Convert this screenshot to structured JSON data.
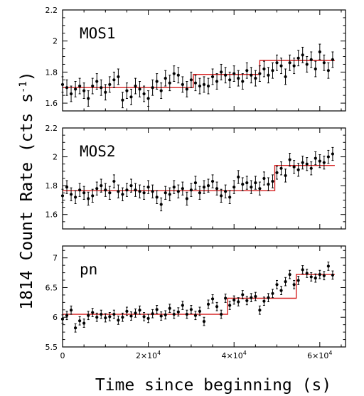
{
  "chart_data": {
    "type": "scatter",
    "xlabel": "Time since beginning (s)",
    "ylabel": "1814 Count Rate (cts s",
    "ylabel_superscript": "-1",
    "ylabel_close": ")",
    "xlim": [
      0,
      66000
    ],
    "x_ticks": [
      {
        "value": 0,
        "label": "0"
      },
      {
        "value": 20000,
        "label": "2×10",
        "exp": "4"
      },
      {
        "value": 40000,
        "label": "4×10",
        "exp": "4"
      },
      {
        "value": 60000,
        "label": "6×10",
        "exp": "4"
      }
    ],
    "colors": {
      "points": "#000000",
      "model": "#d62020",
      "frame": "#000000"
    },
    "panels": [
      {
        "name": "MOS1",
        "ylim": [
          1.55,
          2.2
        ],
        "y_ticks": [
          {
            "value": 1.6,
            "label": "1.6"
          },
          {
            "value": 1.8,
            "label": "1.8"
          },
          {
            "value": 2,
            "label": "2"
          },
          {
            "value": 2.2,
            "label": "2.2"
          }
        ],
        "points": {
          "err": 0.05,
          "x": [
            0,
            1000,
            2000,
            3000,
            4000,
            5000,
            6000,
            7000,
            8000,
            9000,
            10000,
            11000,
            12000,
            13000,
            14000,
            15000,
            16000,
            17000,
            18000,
            19000,
            20000,
            21000,
            22000,
            23000,
            24000,
            25000,
            26000,
            27000,
            28000,
            29000,
            30000,
            31000,
            32000,
            33000,
            34000,
            35000,
            36000,
            37000,
            38000,
            39000,
            40000,
            41000,
            42000,
            43000,
            44000,
            45000,
            46000,
            47000,
            48000,
            49000,
            50000,
            51000,
            52000,
            53000,
            54000,
            55000,
            56000,
            57000,
            58000,
            59000,
            60000,
            61000,
            62000,
            63000
          ],
          "y": [
            1.72,
            1.7,
            1.66,
            1.69,
            1.71,
            1.68,
            1.63,
            1.71,
            1.74,
            1.7,
            1.67,
            1.72,
            1.75,
            1.77,
            1.62,
            1.68,
            1.64,
            1.71,
            1.69,
            1.66,
            1.63,
            1.7,
            1.74,
            1.68,
            1.76,
            1.73,
            1.79,
            1.78,
            1.72,
            1.69,
            1.75,
            1.73,
            1.71,
            1.72,
            1.71,
            1.77,
            1.74,
            1.8,
            1.78,
            1.75,
            1.79,
            1.76,
            1.74,
            1.81,
            1.78,
            1.76,
            1.79,
            1.82,
            1.78,
            1.81,
            1.86,
            1.84,
            1.77,
            1.86,
            1.84,
            1.89,
            1.91,
            1.85,
            1.88,
            1.82,
            1.93,
            1.86,
            1.81,
            1.88
          ]
        },
        "model": [
          {
            "x0": 0,
            "x1": 30500,
            "y": 1.7
          },
          {
            "x0": 30500,
            "x1": 46000,
            "y": 1.785
          },
          {
            "x0": 46000,
            "x1": 63500,
            "y": 1.875
          }
        ]
      },
      {
        "name": "MOS2",
        "ylim": [
          1.5,
          2.2
        ],
        "y_ticks": [
          {
            "value": 1.6,
            "label": "1.6"
          },
          {
            "value": 1.8,
            "label": "1.8"
          },
          {
            "value": 2,
            "label": "2"
          },
          {
            "value": 2.2,
            "label": "2.2"
          }
        ],
        "points": {
          "err": 0.045,
          "x": [
            0,
            1000,
            2000,
            3000,
            4000,
            5000,
            6000,
            7000,
            8000,
            9000,
            10000,
            11000,
            12000,
            13000,
            14000,
            15000,
            16000,
            17000,
            18000,
            19000,
            20000,
            21000,
            22000,
            23000,
            24000,
            25000,
            26000,
            27000,
            28000,
            29000,
            30000,
            31000,
            32000,
            33000,
            34000,
            35000,
            36000,
            37000,
            38000,
            39000,
            40000,
            41000,
            42000,
            43000,
            44000,
            45000,
            46000,
            47000,
            48000,
            49000,
            50000,
            51000,
            52000,
            53000,
            54000,
            55000,
            56000,
            57000,
            58000,
            59000,
            60000,
            61000,
            62000,
            63000
          ],
          "y": [
            1.73,
            1.79,
            1.74,
            1.72,
            1.77,
            1.75,
            1.71,
            1.73,
            1.78,
            1.8,
            1.77,
            1.75,
            1.83,
            1.76,
            1.74,
            1.77,
            1.8,
            1.77,
            1.76,
            1.75,
            1.79,
            1.76,
            1.72,
            1.67,
            1.75,
            1.74,
            1.79,
            1.76,
            1.78,
            1.71,
            1.77,
            1.82,
            1.75,
            1.79,
            1.8,
            1.83,
            1.78,
            1.73,
            1.76,
            1.72,
            1.79,
            1.86,
            1.81,
            1.82,
            1.79,
            1.82,
            1.78,
            1.85,
            1.81,
            1.83,
            1.89,
            1.92,
            1.87,
            1.98,
            1.93,
            1.91,
            1.96,
            1.95,
            1.92,
            1.99,
            1.97,
            1.96,
            2.0,
            2.02
          ]
        },
        "model": [
          {
            "x0": 0,
            "x1": 49500,
            "y": 1.765
          },
          {
            "x0": 49500,
            "x1": 63500,
            "y": 1.94
          }
        ]
      },
      {
        "name": "pn",
        "ylim": [
          5.5,
          7.2
        ],
        "y_ticks": [
          {
            "value": 5.5,
            "label": "5.5"
          },
          {
            "value": 6,
            "label": "6"
          },
          {
            "value": 6.5,
            "label": "6.5"
          },
          {
            "value": 7,
            "label": "7"
          }
        ],
        "points": {
          "err": 0.07,
          "x": [
            0,
            1000,
            2000,
            3000,
            4000,
            5000,
            6000,
            7000,
            8000,
            9000,
            10000,
            11000,
            12000,
            13000,
            14000,
            15000,
            16000,
            17000,
            18000,
            19000,
            20000,
            21000,
            22000,
            23000,
            24000,
            25000,
            26000,
            27000,
            28000,
            29000,
            30000,
            31000,
            32000,
            33000,
            34000,
            35000,
            36000,
            37000,
            38000,
            39000,
            40000,
            41000,
            42000,
            43000,
            44000,
            45000,
            46000,
            47000,
            48000,
            49000,
            50000,
            51000,
            52000,
            53000,
            54000,
            55000,
            56000,
            57000,
            58000,
            59000,
            60000,
            61000,
            62000,
            63000
          ],
          "y": [
            5.97,
            6.03,
            6.12,
            5.82,
            5.94,
            5.9,
            6.03,
            6.08,
            6.0,
            6.05,
            5.99,
            6.01,
            6.05,
            5.95,
            6.0,
            6.1,
            6.02,
            6.07,
            6.12,
            6.01,
            5.98,
            6.06,
            6.13,
            6.02,
            6.04,
            6.15,
            6.05,
            6.09,
            6.2,
            6.05,
            6.13,
            6.03,
            6.1,
            5.93,
            6.22,
            6.31,
            6.18,
            6.05,
            6.32,
            6.2,
            6.29,
            6.26,
            6.38,
            6.28,
            6.33,
            6.35,
            6.12,
            6.27,
            6.33,
            6.4,
            6.55,
            6.45,
            6.6,
            6.72,
            6.55,
            6.62,
            6.8,
            6.74,
            6.68,
            6.66,
            6.72,
            6.7,
            6.86,
            6.71
          ]
        },
        "model": [
          {
            "x0": 0,
            "x1": 38500,
            "y": 6.05
          },
          {
            "x0": 38500,
            "x1": 54500,
            "y": 6.32
          },
          {
            "x0": 54500,
            "x1": 63500,
            "y": 6.72
          }
        ]
      }
    ]
  }
}
